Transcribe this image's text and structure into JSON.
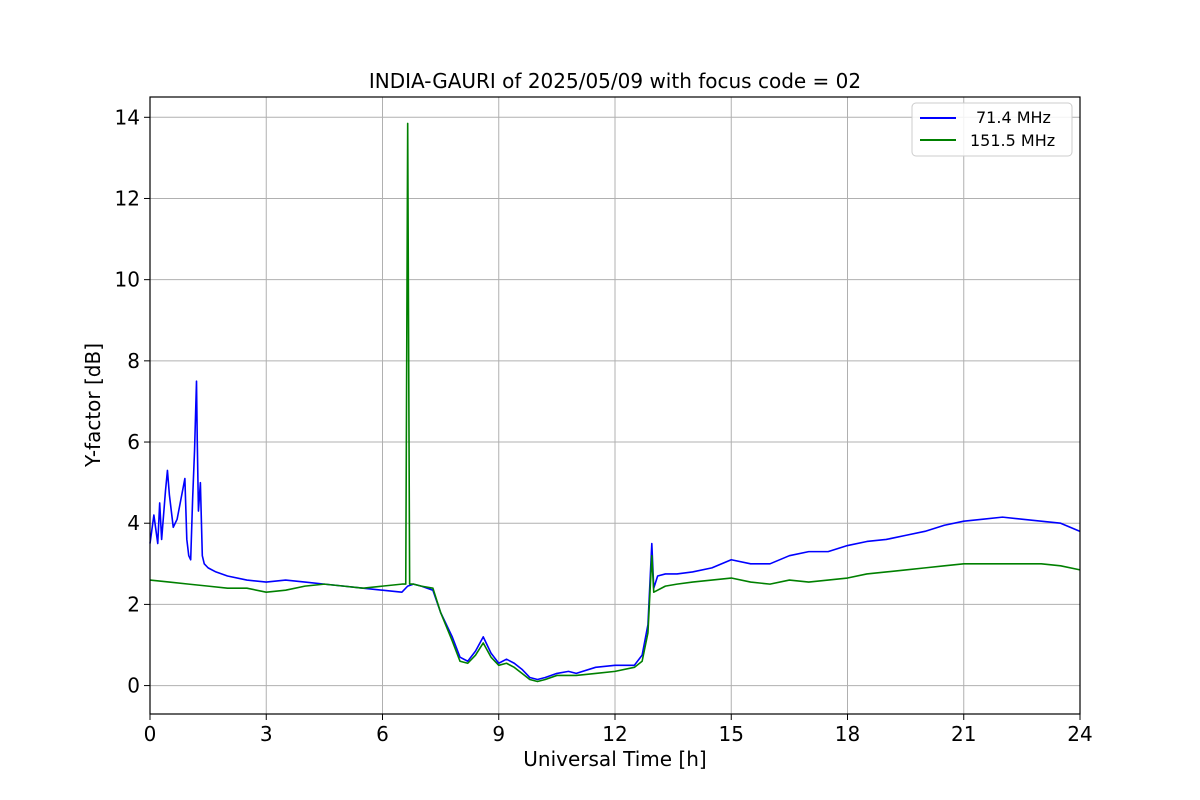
{
  "chart_data": {
    "type": "line",
    "title": "INDIA-GAURI of 2025/05/09 with focus code = 02",
    "xlabel": "Universal Time [h]",
    "ylabel": "Y-factor [dB]",
    "xlim": [
      0,
      24
    ],
    "ylim": [
      -0.7,
      14.5
    ],
    "xticks": [
      0,
      3,
      6,
      9,
      12,
      15,
      18,
      21,
      24
    ],
    "yticks": [
      0,
      2,
      4,
      6,
      8,
      10,
      12,
      14
    ],
    "grid": true,
    "legend_position": "top-right",
    "series": [
      {
        "name": "71.4 MHz",
        "color": "#0000ff",
        "x": [
          0,
          0.1,
          0.2,
          0.25,
          0.3,
          0.4,
          0.45,
          0.5,
          0.6,
          0.7,
          0.8,
          0.9,
          0.95,
          1.0,
          1.05,
          1.1,
          1.15,
          1.2,
          1.22,
          1.25,
          1.3,
          1.35,
          1.4,
          1.5,
          1.7,
          2.0,
          2.5,
          3.0,
          3.5,
          4.0,
          4.5,
          5.0,
          5.5,
          6.0,
          6.5,
          6.65,
          6.8,
          7.0,
          7.3,
          7.5,
          7.8,
          8.0,
          8.2,
          8.4,
          8.6,
          8.8,
          9.0,
          9.2,
          9.4,
          9.6,
          9.8,
          10.0,
          10.2,
          10.5,
          10.8,
          11.0,
          11.5,
          12.0,
          12.5,
          12.7,
          12.85,
          12.95,
          13.0,
          13.1,
          13.3,
          13.6,
          14.0,
          14.5,
          15.0,
          15.5,
          16.0,
          16.5,
          17.0,
          17.5,
          18.0,
          18.5,
          19.0,
          19.5,
          20.0,
          20.5,
          21.0,
          21.5,
          22.0,
          22.5,
          23.0,
          23.5,
          24.0
        ],
        "values": [
          3.5,
          4.2,
          3.5,
          4.5,
          3.6,
          4.8,
          5.3,
          4.7,
          3.9,
          4.1,
          4.6,
          5.1,
          3.6,
          3.2,
          3.1,
          4.6,
          5.8,
          7.5,
          6.0,
          4.3,
          5.0,
          3.2,
          3.0,
          2.9,
          2.8,
          2.7,
          2.6,
          2.55,
          2.6,
          2.55,
          2.5,
          2.45,
          2.4,
          2.35,
          2.3,
          2.45,
          2.5,
          2.45,
          2.35,
          1.8,
          1.2,
          0.7,
          0.6,
          0.85,
          1.2,
          0.8,
          0.55,
          0.65,
          0.55,
          0.4,
          0.2,
          0.15,
          0.2,
          0.3,
          0.35,
          0.3,
          0.45,
          0.5,
          0.5,
          0.75,
          1.5,
          3.5,
          2.4,
          2.7,
          2.75,
          2.75,
          2.8,
          2.9,
          3.1,
          3.0,
          3.0,
          3.2,
          3.3,
          3.3,
          3.45,
          3.55,
          3.6,
          3.7,
          3.8,
          3.95,
          4.05,
          4.1,
          4.15,
          4.1,
          4.05,
          4.0,
          3.8
        ]
      },
      {
        "name": "151.5 MHz",
        "color": "#008000",
        "x": [
          0,
          0.5,
          1.0,
          1.5,
          2.0,
          2.5,
          3.0,
          3.5,
          4.0,
          4.5,
          5.0,
          5.5,
          6.0,
          6.5,
          6.6,
          6.65,
          6.7,
          6.8,
          7.0,
          7.3,
          7.5,
          7.8,
          8.0,
          8.2,
          8.4,
          8.6,
          8.8,
          9.0,
          9.2,
          9.4,
          9.6,
          9.8,
          10.0,
          10.2,
          10.5,
          10.8,
          11.0,
          11.5,
          12.0,
          12.5,
          12.7,
          12.85,
          12.95,
          13.0,
          13.3,
          13.6,
          14.0,
          14.5,
          15.0,
          15.5,
          16.0,
          16.5,
          17.0,
          17.5,
          18.0,
          18.5,
          19.0,
          19.5,
          20.0,
          20.5,
          21.0,
          21.5,
          22.0,
          22.5,
          23.0,
          23.5,
          24.0
        ],
        "values": [
          2.6,
          2.55,
          2.5,
          2.45,
          2.4,
          2.4,
          2.3,
          2.35,
          2.45,
          2.5,
          2.45,
          2.4,
          2.45,
          2.5,
          2.5,
          13.85,
          2.5,
          2.5,
          2.45,
          2.4,
          1.8,
          1.1,
          0.6,
          0.55,
          0.75,
          1.05,
          0.7,
          0.5,
          0.55,
          0.45,
          0.3,
          0.15,
          0.1,
          0.15,
          0.25,
          0.25,
          0.25,
          0.3,
          0.35,
          0.45,
          0.6,
          1.3,
          3.2,
          2.3,
          2.45,
          2.5,
          2.55,
          2.6,
          2.65,
          2.55,
          2.5,
          2.6,
          2.55,
          2.6,
          2.65,
          2.75,
          2.8,
          2.85,
          2.9,
          2.95,
          3.0,
          3.0,
          3.0,
          3.0,
          3.0,
          2.95,
          2.85
        ]
      }
    ]
  }
}
